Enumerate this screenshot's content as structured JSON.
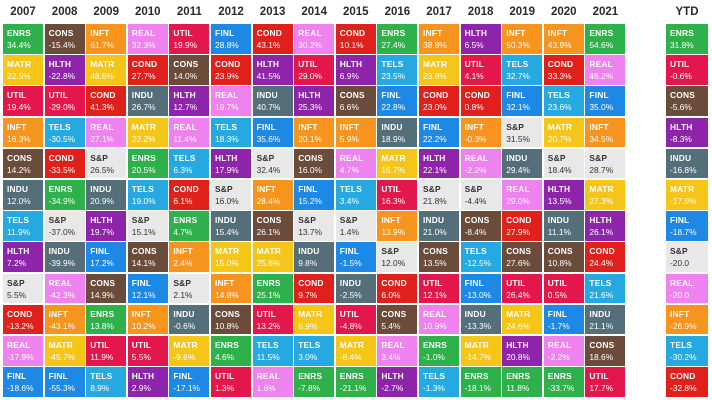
{
  "chart_data": {
    "type": "table",
    "years": [
      "2007",
      "2008",
      "2009",
      "2010",
      "2011",
      "2012",
      "2013",
      "2014",
      "2015",
      "2016",
      "2017",
      "2018",
      "2019",
      "2020",
      "2021"
    ],
    "ytd_label": "YTD",
    "colors": {
      "ENRS": "#2eb04a",
      "CONS": "#6b4b3a",
      "INFT": "#f7941d",
      "REAL": "#ee82ee",
      "UTIL": "#e3174b",
      "FINL": "#1e88e5",
      "COND": "#e0201b",
      "HLTH": "#8e24aa",
      "MATR": "#f5c518",
      "TELS": "#26a9e0",
      "INDU": "#546e7a",
      "S&P": "#e8e8e8"
    },
    "columns": [
      [
        [
          "ENRS",
          "34.4%"
        ],
        [
          "MATR",
          "22.5%"
        ],
        [
          "UTIL",
          "19.4%"
        ],
        [
          "INFT",
          "16.3%"
        ],
        [
          "CONS",
          "14.2%"
        ],
        [
          "INDU",
          "12.0%"
        ],
        [
          "TELS",
          "11.9%"
        ],
        [
          "HLTH",
          "7.2%"
        ],
        [
          "S&P",
          "5.5%"
        ],
        [
          "COND",
          "-13.2%"
        ],
        [
          "REAL",
          "-17.9%"
        ],
        [
          "FINL",
          "-18.6%"
        ]
      ],
      [
        [
          "CONS",
          "-15.4%"
        ],
        [
          "HLTH",
          "-22.8%"
        ],
        [
          "UTIL",
          "-29.0%"
        ],
        [
          "TELS",
          "-30.5%"
        ],
        [
          "COND",
          "-33.5%"
        ],
        [
          "ENRS",
          "-34.9%"
        ],
        [
          "S&P",
          "-37.0%"
        ],
        [
          "INDU",
          "-39.9%"
        ],
        [
          "REAL",
          "-42.3%"
        ],
        [
          "INFT",
          "-43.1%"
        ],
        [
          "MATR",
          "-45.7%"
        ],
        [
          "FINL",
          "-55.3%"
        ]
      ],
      [
        [
          "INFT",
          "61.7%"
        ],
        [
          "MATR",
          "48.6%"
        ],
        [
          "COND",
          "41.3%"
        ],
        [
          "REAL",
          "27.1%"
        ],
        [
          "S&P",
          "26.5%"
        ],
        [
          "INDU",
          "20.9%"
        ],
        [
          "HLTH",
          "19.7%"
        ],
        [
          "FINL",
          "17.2%"
        ],
        [
          "CONS",
          "14.9%"
        ],
        [
          "ENRS",
          "13.8%"
        ],
        [
          "UTIL",
          "11.9%"
        ],
        [
          "TELS",
          "8.9%"
        ]
      ],
      [
        [
          "REAL",
          "32.3%"
        ],
        [
          "COND",
          "27.7%"
        ],
        [
          "INDU",
          "26.7%"
        ],
        [
          "MATR",
          "22.2%"
        ],
        [
          "ENRS",
          "20.5%"
        ],
        [
          "TELS",
          "19.0%"
        ],
        [
          "S&P",
          "15.1%"
        ],
        [
          "CONS",
          "14.1%"
        ],
        [
          "FINL",
          "12.1%"
        ],
        [
          "INFT",
          "10.2%"
        ],
        [
          "UTIL",
          "5.5%"
        ],
        [
          "HLTH",
          "2.9%"
        ]
      ],
      [
        [
          "UTIL",
          "19.9%"
        ],
        [
          "CONS",
          "14.0%"
        ],
        [
          "HLTH",
          "12.7%"
        ],
        [
          "REAL",
          "11.4%"
        ],
        [
          "TELS",
          "6.3%"
        ],
        [
          "COND",
          "6.1%"
        ],
        [
          "ENRS",
          "4.7%"
        ],
        [
          "INFT",
          "2.4%"
        ],
        [
          "S&P",
          "2.1%"
        ],
        [
          "INDU",
          "-0.6%"
        ],
        [
          "MATR",
          "-9.6%"
        ],
        [
          "FINL",
          "-17.1%"
        ]
      ],
      [
        [
          "FINL",
          "28.8%"
        ],
        [
          "COND",
          "23.9%"
        ],
        [
          "REAL",
          "19.7%"
        ],
        [
          "TELS",
          "18.3%"
        ],
        [
          "HLTH",
          "17.9%"
        ],
        [
          "S&P",
          "16.0%"
        ],
        [
          "INDU",
          "15.4%"
        ],
        [
          "MATR",
          "15.0%"
        ],
        [
          "INFT",
          "14.8%"
        ],
        [
          "CONS",
          "10.8%"
        ],
        [
          "ENRS",
          "4.6%"
        ],
        [
          "UTIL",
          "1.3%"
        ]
      ],
      [
        [
          "COND",
          "43.1%"
        ],
        [
          "HLTH",
          "41.5%"
        ],
        [
          "INDU",
          "40.7%"
        ],
        [
          "FINL",
          "35.6%"
        ],
        [
          "S&P",
          "32.4%"
        ],
        [
          "INFT",
          "28.4%"
        ],
        [
          "CONS",
          "26.1%"
        ],
        [
          "MATR",
          "25.6%"
        ],
        [
          "ENRS",
          "25.1%"
        ],
        [
          "UTIL",
          "13.2%"
        ],
        [
          "TELS",
          "11.5%"
        ],
        [
          "REAL",
          "1.6%"
        ]
      ],
      [
        [
          "REAL",
          "30.2%"
        ],
        [
          "UTIL",
          "29.0%"
        ],
        [
          "HLTH",
          "25.3%"
        ],
        [
          "INFT",
          "20.1%"
        ],
        [
          "CONS",
          "16.0%"
        ],
        [
          "FINL",
          "15.2%"
        ],
        [
          "S&P",
          "13.7%"
        ],
        [
          "INDU",
          "9.8%"
        ],
        [
          "COND",
          "9.7%"
        ],
        [
          "MATR",
          "6.9%"
        ],
        [
          "TELS",
          "3.0%"
        ],
        [
          "ENRS",
          "-7.8%"
        ]
      ],
      [
        [
          "COND",
          "10.1%"
        ],
        [
          "HLTH",
          "6.9%"
        ],
        [
          "CONS",
          "6.6%"
        ],
        [
          "INFT",
          "5.9%"
        ],
        [
          "REAL",
          "4.7%"
        ],
        [
          "TELS",
          "3.4%"
        ],
        [
          "S&P",
          "1.4%"
        ],
        [
          "FINL",
          "-1.5%"
        ],
        [
          "INDU",
          "-2.5%"
        ],
        [
          "UTIL",
          "-4.8%"
        ],
        [
          "MATR",
          "-8.4%"
        ],
        [
          "ENRS",
          "-21.1%"
        ]
      ],
      [
        [
          "ENRS",
          "27.4%"
        ],
        [
          "TELS",
          "23.5%"
        ],
        [
          "FINL",
          "22.8%"
        ],
        [
          "INDU",
          "18.9%"
        ],
        [
          "MATR",
          "16.7%"
        ],
        [
          "UTIL",
          "16.3%"
        ],
        [
          "INFT",
          "13.9%"
        ],
        [
          "S&P",
          "12.0%"
        ],
        [
          "COND",
          "6.0%"
        ],
        [
          "CONS",
          "5.4%"
        ],
        [
          "REAL",
          "3.4%"
        ],
        [
          "HLTH",
          "-2.7%"
        ]
      ],
      [
        [
          "INFT",
          "38.8%"
        ],
        [
          "MATR",
          "23.8%"
        ],
        [
          "COND",
          "23.0%"
        ],
        [
          "FINL",
          "22.2%"
        ],
        [
          "HLTH",
          "22.1%"
        ],
        [
          "S&P",
          "21.8%"
        ],
        [
          "INDU",
          "21.0%"
        ],
        [
          "CONS",
          "13.5%"
        ],
        [
          "UTIL",
          "12.1%"
        ],
        [
          "REAL",
          "10.9%"
        ],
        [
          "ENRS",
          "-1.0%"
        ],
        [
          "TELS",
          "-1.3%"
        ]
      ],
      [
        [
          "HLTH",
          "6.5%"
        ],
        [
          "UTIL",
          "4.1%"
        ],
        [
          "COND",
          "0.8%"
        ],
        [
          "INFT",
          "-0.3%"
        ],
        [
          "REAL",
          "-2.2%"
        ],
        [
          "S&P",
          "-4.4%"
        ],
        [
          "CONS",
          "-8.4%"
        ],
        [
          "TELS",
          "-12.5%"
        ],
        [
          "FINL",
          "-13.0%"
        ],
        [
          "INDU",
          "-13.3%"
        ],
        [
          "MATR",
          "-14.7%"
        ],
        [
          "ENRS",
          "-18.1%"
        ]
      ],
      [
        [
          "INFT",
          "50.3%"
        ],
        [
          "TELS",
          "32.7%"
        ],
        [
          "FINL",
          "32.1%"
        ],
        [
          "S&P",
          "31.5%"
        ],
        [
          "INDU",
          "29.4%"
        ],
        [
          "REAL",
          "29.0%"
        ],
        [
          "COND",
          "27.9%"
        ],
        [
          "CONS",
          "27.6%"
        ],
        [
          "UTIL",
          "26.4%"
        ],
        [
          "MATR",
          "24.6%"
        ],
        [
          "HLTH",
          "20.8%"
        ],
        [
          "ENRS",
          "11.8%"
        ]
      ],
      [
        [
          "INFT",
          "43.9%"
        ],
        [
          "COND",
          "33.3%"
        ],
        [
          "TELS",
          "23.6%"
        ],
        [
          "MATR",
          "20.7%"
        ],
        [
          "S&P",
          "18.4%"
        ],
        [
          "HLTH",
          "13.5%"
        ],
        [
          "INDU",
          "11.1%"
        ],
        [
          "CONS",
          "10.8%"
        ],
        [
          "UTIL",
          "0.5%"
        ],
        [
          "FINL",
          "-1.7%"
        ],
        [
          "REAL",
          "-2.2%"
        ],
        [
          "ENRS",
          "-33.7%"
        ]
      ],
      [
        [
          "ENRS",
          "54.6%"
        ],
        [
          "REAL",
          "46.2%"
        ],
        [
          "FINL",
          "35.0%"
        ],
        [
          "INFT",
          "34.5%"
        ],
        [
          "S&P",
          "28.7%"
        ],
        [
          "MATR",
          "27.3%"
        ],
        [
          "HLTH",
          "26.1%"
        ],
        [
          "COND",
          "24.4%"
        ],
        [
          "TELS",
          "21.6%"
        ],
        [
          "INDU",
          "21.1%"
        ],
        [
          "CONS",
          "18.6%"
        ],
        [
          "UTIL",
          "17.7%"
        ]
      ]
    ],
    "ytd": [
      [
        "ENRS",
        "31.8%"
      ],
      [
        "UTIL",
        "-0.6%"
      ],
      [
        "CONS",
        "-5.6%"
      ],
      [
        "HLTH",
        "-8.3%"
      ],
      [
        "INDU",
        "-16.8%"
      ],
      [
        "MATR",
        "-17.9%"
      ],
      [
        "FINL",
        "-18.7%"
      ],
      [
        "S&P",
        "-20.0"
      ],
      [
        "REAL",
        "-20.0"
      ],
      [
        "INFT",
        "-26.9%"
      ],
      [
        "TELS",
        "-30.2%"
      ],
      [
        "COND",
        "-32.8%"
      ]
    ]
  }
}
